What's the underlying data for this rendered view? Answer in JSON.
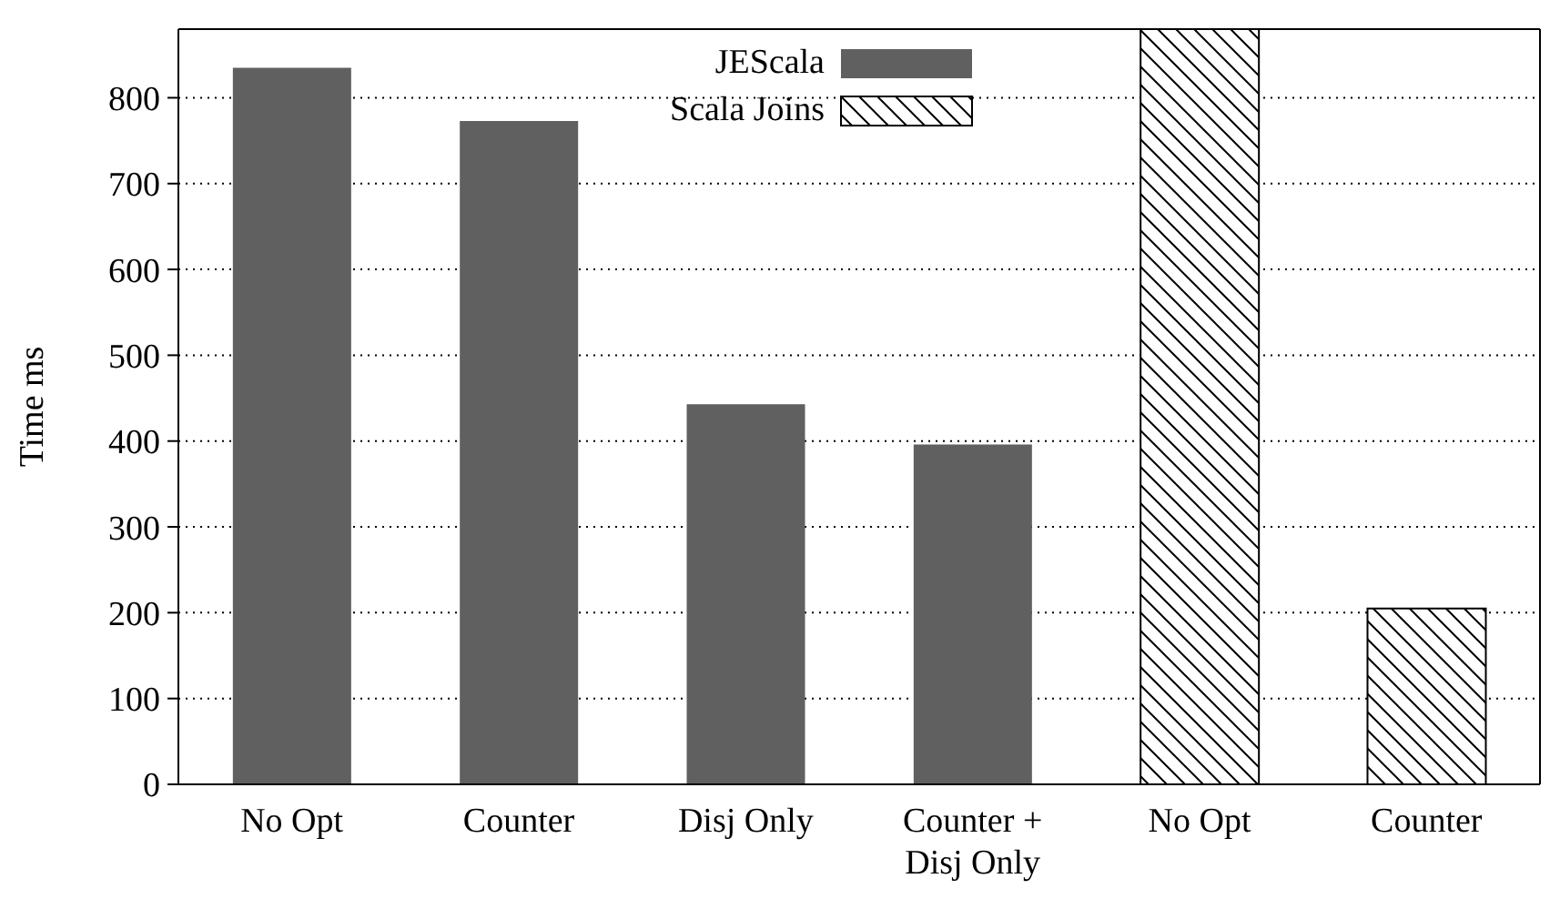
{
  "chart_data": {
    "type": "bar",
    "ylabel": "Time ms",
    "categories": [
      "No Opt",
      "Counter",
      "Disj Only",
      "Counter +\nDisj Only",
      "No Opt",
      "Counter"
    ],
    "series": [
      {
        "name": "JEScala",
        "color": "#606060",
        "values": [
          835,
          773,
          443,
          396,
          null,
          null
        ]
      },
      {
        "name": "Scala Joins",
        "color": "#000000",
        "values": [
          null,
          null,
          null,
          null,
          880,
          205
        ]
      }
    ],
    "ylim": [
      0,
      880
    ],
    "yticks": [
      0,
      100,
      200,
      300,
      400,
      500,
      600,
      700,
      800
    ],
    "grid": "y",
    "legend": "top"
  }
}
